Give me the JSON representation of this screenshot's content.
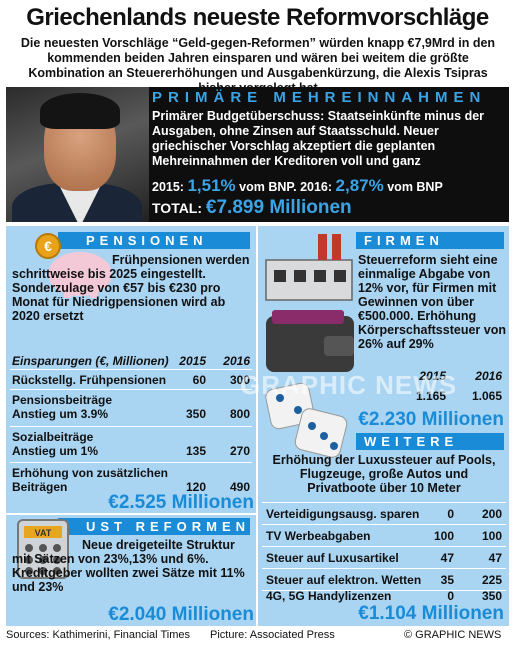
{
  "title": "Griechenlands neueste Reformvorschläge",
  "intro": "Die neuesten Vorschläge “Geld-gegen-Reformen” würden knapp €7,9Mrd in den kommenden beiden Jahren einsparen und wären bei weitem die größte Kombination an Steuererhöhungen und Ausgabenkürzung, die Alexis Tsipras bisher vorgelegt hat",
  "primary": {
    "heading": "PRIMÄRE MEHREINNAHMEN",
    "text": "Primärer Budgetüberschuss: Staatseinkünfte minus der Ausgaben, ohne Zinsen auf Staatsschuld. Neuer griechischer Vorschlag akzeptiert die geplanten Mehreinnahmen der Kreditoren voll und ganz",
    "y2015_label": "2015:",
    "y2015_value": "1,51%",
    "y2015_suffix": "vom BNP.",
    "y2016_label": "2016:",
    "y2016_value": "2,87%",
    "y2016_suffix": "vom BNP",
    "total_label": "TOTAL:",
    "total_value": "€7.899 Millionen"
  },
  "pensionen": {
    "heading": "PENSIONEN",
    "text": "Frühpensionen werden schrittweise bis 2025 eingestellt. Sonderzulage von €57 bis €230 pro Monat für Niedrigpensionen wird ab 2020 ersetzt",
    "col_label": "Einsparungen (€, Millionen)",
    "col_2015": "2015",
    "col_2016": "2016",
    "rows": [
      {
        "label": "Rückstellg. Frühpensionen",
        "v2015": "60",
        "v2016": "300"
      },
      {
        "label": "Pensionsbeiträge Anstieg um 3.9%",
        "v2015": "350",
        "v2016": "800"
      },
      {
        "label": "Sozialbeiträge Anstieg um 1%",
        "v2015": "135",
        "v2016": "270"
      },
      {
        "label": "Erhöhung von zusätzlichen Beiträgen",
        "v2015": "120",
        "v2016": "490"
      }
    ],
    "total": "€2.525 Millionen"
  },
  "ust": {
    "heading": "UST REFORMEN",
    "text": "Neue dreigeteilte Struktur mit Sätzen von 23%,13% und 6%. Kreditgeber wollten zwei Sätze mit 11% und 23%",
    "total": "€2.040 Millionen",
    "calc_label": "VAT"
  },
  "firmen": {
    "heading": "FIRMEN",
    "text": "Steuerreform sieht eine einmalige Abgabe von 12% vor, für Firmen mit Gewinnen von über €500.000. Erhöhung Körperschaftssteuer von 26% auf 29%",
    "col_2015": "2015",
    "col_2016": "2016",
    "v2015": "1.165",
    "v2016": "1.065",
    "total": "€2.230 Millionen"
  },
  "weitere": {
    "heading": "WEITERE",
    "text": "Erhöhung der Luxussteuer auf Pools, Flugzeuge, große Autos und Privatboote über 10 Meter",
    "rows": [
      {
        "label": "Verteidigungsausg. sparen",
        "v2015": "0",
        "v2016": "200"
      },
      {
        "label": "TV Werbeabgaben",
        "v2015": "100",
        "v2016": "100"
      },
      {
        "label": "Steuer auf Luxusartikel",
        "v2015": "47",
        "v2016": "47"
      },
      {
        "label": "Steuer auf elektron. Wetten",
        "v2015": "35",
        "v2016": "225"
      },
      {
        "label": "4G, 5G Handylizenzen",
        "v2015": "0",
        "v2016": "350"
      }
    ],
    "total": "€1.104 Millionen"
  },
  "footer": {
    "sources": "Sources: Kathimerini, Financial Times",
    "picture": "Picture: Associated Press",
    "credit": "© GRAPHIC NEWS"
  },
  "watermark": "GRAPHIC NEWS",
  "colors": {
    "accent": "#1a8bd6",
    "panel": "#a9d4f2",
    "dark": "#0e0e0e",
    "highlight": "#3aa4e6"
  }
}
